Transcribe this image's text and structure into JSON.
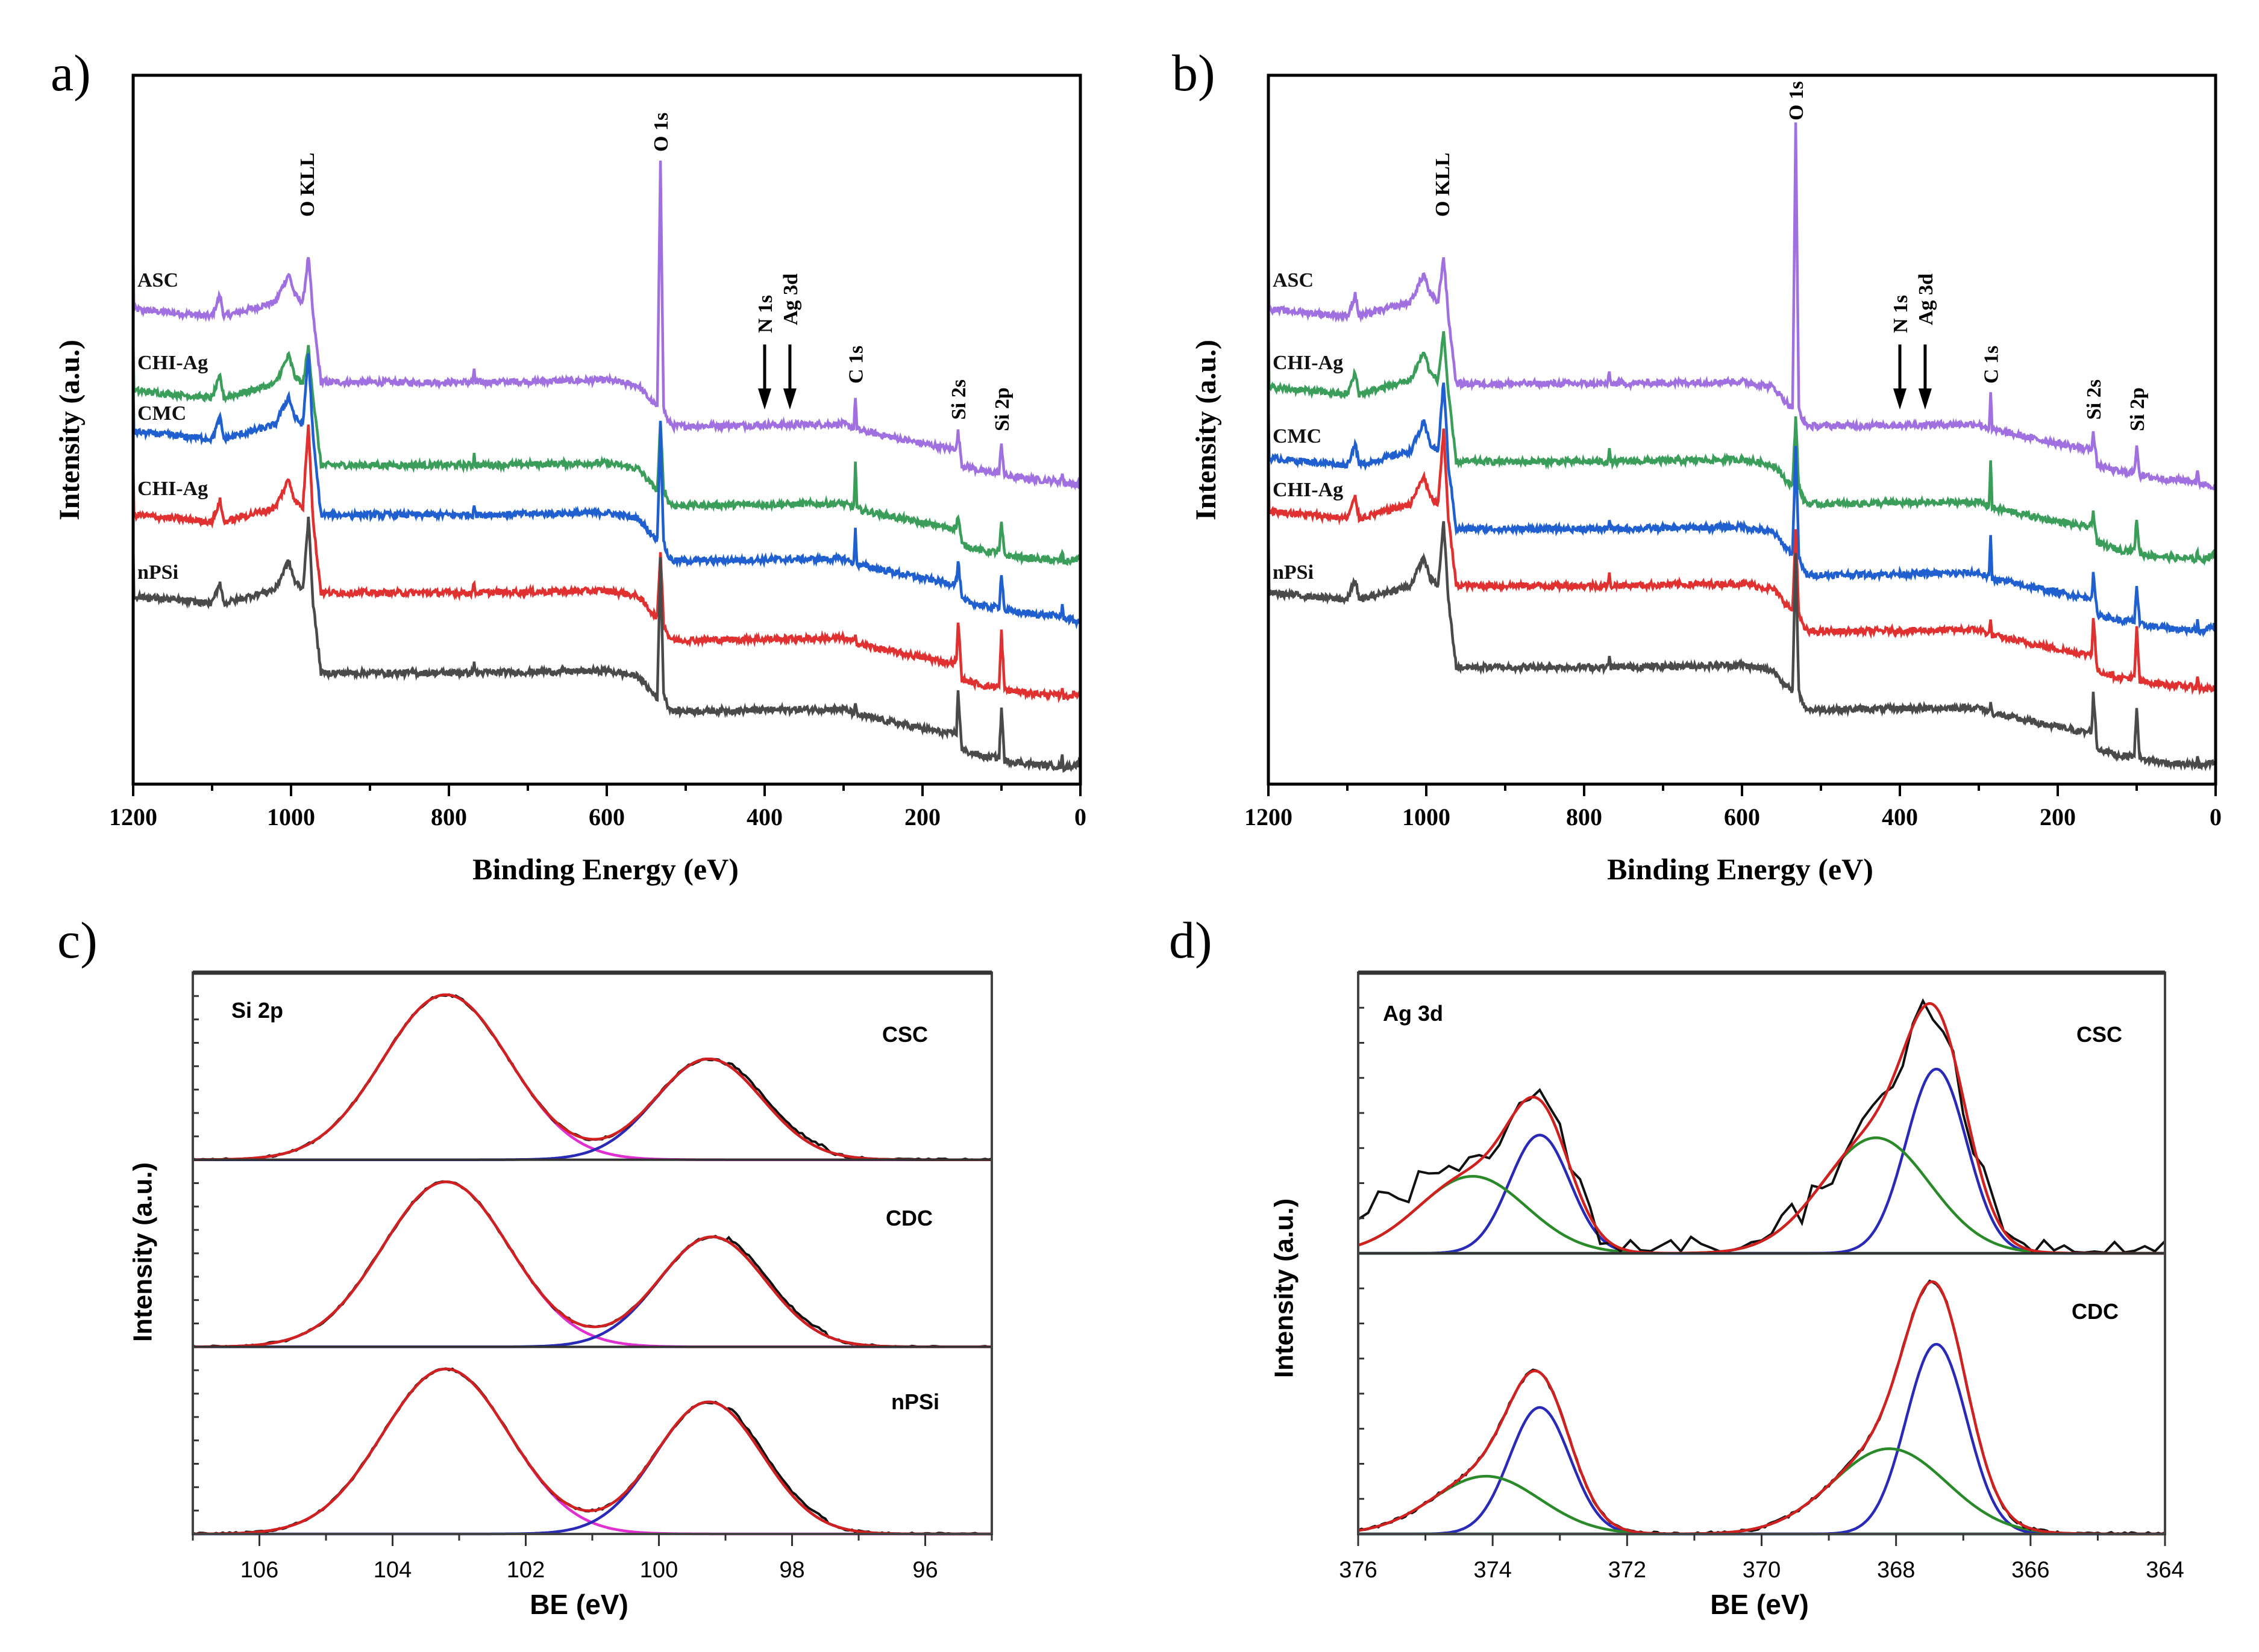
{
  "chart_data": [
    {
      "panel": "a)",
      "type": "line",
      "xlabel": "Binding Energy (eV)",
      "ylabel": "Intensity (a.u.)",
      "xlim": [
        1200,
        0
      ],
      "xticks": [
        "1200",
        "1000",
        "800",
        "600",
        "400",
        "200",
        "0"
      ],
      "grid": false,
      "annotations": [
        {
          "text": "O KLL",
          "x": 980,
          "arrow": false
        },
        {
          "text": "O 1s",
          "x": 532,
          "arrow": false
        },
        {
          "text": "N 1s",
          "x": 400,
          "arrow": true
        },
        {
          "text": "Ag 3d",
          "x": 368,
          "arrow": true
        },
        {
          "text": "C 1s",
          "x": 285,
          "arrow": false
        },
        {
          "text": "Si 2s",
          "x": 155,
          "arrow": false
        },
        {
          "text": "Si 2p",
          "x": 100,
          "arrow": false
        }
      ],
      "series": [
        {
          "name": "ASC",
          "color": "#a070e0",
          "y_1200": 67,
          "O_KLL_peak": 74.5,
          "level_950_560": 56.7,
          "O_1s_peak": 88.2,
          "level_500_300": 50.5,
          "C_1s_peak": 54.8,
          "Si_2s_peak": 49.7,
          "Si_2p_peak": 48,
          "y_0": 42.2
        },
        {
          "name": "CHI-Ag",
          "color": "#3a9e5a",
          "y_1200": 55.5,
          "O_KLL_peak": 61.7,
          "level_950_560": 45,
          "O_1s_peak": 51,
          "level_500_300": 39.3,
          "C_1s_peak": 45.5,
          "Si_2s_peak": 38,
          "Si_2p_peak": 36.8,
          "y_0": 31.9
        },
        {
          "name": "CMC",
          "color": "#1f5fd0",
          "y_1200": 49.7,
          "O_KLL_peak": 61,
          "level_950_560": 38,
          "O_1s_peak": 51,
          "level_500_300": 31.5,
          "C_1s_peak": 36,
          "Si_2s_peak": 31.5,
          "Si_2p_peak": 29.8,
          "y_0": 22.8
        },
        {
          "name": "CHI-Ag",
          "color": "#e03030",
          "y_1200": 38,
          "O_KLL_peak": 51,
          "level_950_560": 27,
          "O_1s_peak": 33,
          "level_500_300": 20.3,
          "C_1s_peak": 21.5,
          "Si_2s_peak": 23,
          "Si_2p_peak": 21.5,
          "y_0": 12.8
        },
        {
          "name": "nPSi",
          "color": "#4a4a4a",
          "y_1200": 26.5,
          "O_KLL_peak": 37.7,
          "level_950_560": 15.7,
          "O_1s_peak": 32,
          "level_500_300": 10.3,
          "C_1s_peak": 11,
          "Si_2s_peak": 13,
          "Si_2p_peak": 10.8,
          "y_0": 2.9
        }
      ]
    },
    {
      "panel": "b)",
      "type": "line",
      "xlabel": "Binding Energy (eV)",
      "ylabel": "Intensity (a.u.)",
      "xlim": [
        1200,
        0
      ],
      "xticks": [
        "1200",
        "1000",
        "800",
        "600",
        "400",
        "200",
        "0"
      ],
      "grid": false,
      "annotations": [
        {
          "text": "O KLL",
          "x": 980,
          "arrow": false
        },
        {
          "text": "O 1s",
          "x": 532,
          "arrow": false
        },
        {
          "text": "N 1s",
          "x": 400,
          "arrow": true
        },
        {
          "text": "Ag 3d",
          "x": 368,
          "arrow": true
        },
        {
          "text": "C 1s",
          "x": 285,
          "arrow": false
        },
        {
          "text": "Si 2s",
          "x": 155,
          "arrow": false
        },
        {
          "text": "Si 2p",
          "x": 100,
          "arrow": false
        }
      ],
      "series": [
        {
          "name": "ASC",
          "color": "#a070e0",
          "y_1200": 67,
          "O_KLL_peak": 74.5,
          "level_950_560": 56.5,
          "O_1s_peak": 93,
          "level_500_300": 50.5,
          "C_1s_peak": 55,
          "Si_2s_peak": 49.5,
          "Si_2p_peak": 48,
          "y_0": 42
        },
        {
          "name": "CHI-Ag",
          "color": "#3a9e5a",
          "y_1200": 56,
          "O_KLL_peak": 64,
          "level_950_560": 45.5,
          "O_1s_peak": 52,
          "level_500_300": 39.5,
          "C_1s_peak": 46,
          "Si_2s_peak": 38.5,
          "Si_2p_peak": 37.5,
          "y_0": 32.5
        },
        {
          "name": "CMC",
          "color": "#1f5fd0",
          "y_1200": 46,
          "O_KLL_peak": 57,
          "level_950_560": 36,
          "O_1s_peak": 48,
          "level_500_300": 29.5,
          "C_1s_peak": 35,
          "Si_2s_peak": 29.5,
          "Si_2p_peak": 28,
          "y_0": 22.5
        },
        {
          "name": "CHI-Ag",
          "color": "#e03030",
          "y_1200": 38.5,
          "O_KLL_peak": 50,
          "level_950_560": 28,
          "O_1s_peak": 36,
          "level_500_300": 21.5,
          "C_1s_peak": 23,
          "Si_2s_peak": 23.5,
          "Si_2p_peak": 22,
          "y_0": 13.5
        },
        {
          "name": "nPSi",
          "color": "#4a4a4a",
          "y_1200": 27,
          "O_KLL_peak": 37,
          "level_950_560": 16.5,
          "O_1s_peak": 33,
          "level_500_300": 10.5,
          "C_1s_peak": 11.5,
          "Si_2s_peak": 13,
          "Si_2p_peak": 11,
          "y_0": 3
        }
      ]
    },
    {
      "panel": "c)",
      "type": "line",
      "region": "Si 2p",
      "xlabel": "BE (eV)",
      "ylabel": "Intensity (a.u.)",
      "xlim": [
        107,
        95
      ],
      "xticks": [
        "106",
        "104",
        "102",
        "100",
        "98",
        "96"
      ],
      "grid": false,
      "colors": {
        "data": "#111111",
        "envelope": "#d02020"
      },
      "subpanels": [
        {
          "label": "CSC",
          "components": [
            {
              "center": 103.2,
              "height": 0.9,
              "sigma": 0.95,
              "color": "#e030d0"
            },
            {
              "center": 99.25,
              "height": 0.55,
              "sigma": 0.8,
              "color": "#2a2ab8"
            }
          ]
        },
        {
          "label": "CDC",
          "components": [
            {
              "center": 103.2,
              "height": 0.9,
              "sigma": 0.95,
              "color": "#e030d0"
            },
            {
              "center": 99.2,
              "height": 0.6,
              "sigma": 0.8,
              "color": "#2a2ab8"
            }
          ]
        },
        {
          "label": "nPSi",
          "components": [
            {
              "center": 103.2,
              "height": 0.9,
              "sigma": 0.95,
              "color": "#e030d0"
            },
            {
              "center": 99.25,
              "height": 0.72,
              "sigma": 0.8,
              "color": "#2a2ab8"
            }
          ]
        }
      ]
    },
    {
      "panel": "d)",
      "type": "line",
      "region": "Ag 3d",
      "xlabel": "BE (eV)",
      "ylabel": "Intensity (a.u.)",
      "xlim": [
        376,
        364
      ],
      "xticks": [
        "376",
        "374",
        "372",
        "370",
        "368",
        "366",
        "364"
      ],
      "grid": false,
      "colors": {
        "data": "#111111",
        "envelope": "#d02020"
      },
      "subpanels": [
        {
          "label": "CSC",
          "components": [
            {
              "center": 373.3,
              "height": 0.43,
              "sigma": 0.45,
              "color": "#2a2ab8"
            },
            {
              "center": 374.3,
              "height": 0.28,
              "sigma": 0.8,
              "color": "#2a8a2a"
            },
            {
              "center": 367.4,
              "height": 0.67,
              "sigma": 0.45,
              "color": "#2a2ab8"
            },
            {
              "center": 368.3,
              "height": 0.42,
              "sigma": 0.8,
              "color": "#2a8a2a"
            }
          ]
        },
        {
          "label": "CDC",
          "components": [
            {
              "center": 373.3,
              "height": 0.46,
              "sigma": 0.45,
              "color": "#2a2ab8"
            },
            {
              "center": 374.1,
              "height": 0.21,
              "sigma": 0.8,
              "color": "#2a8a2a"
            },
            {
              "center": 367.4,
              "height": 0.69,
              "sigma": 0.45,
              "color": "#2a2ab8"
            },
            {
              "center": 368.1,
              "height": 0.31,
              "sigma": 0.85,
              "color": "#2a8a2a"
            }
          ]
        }
      ]
    }
  ]
}
